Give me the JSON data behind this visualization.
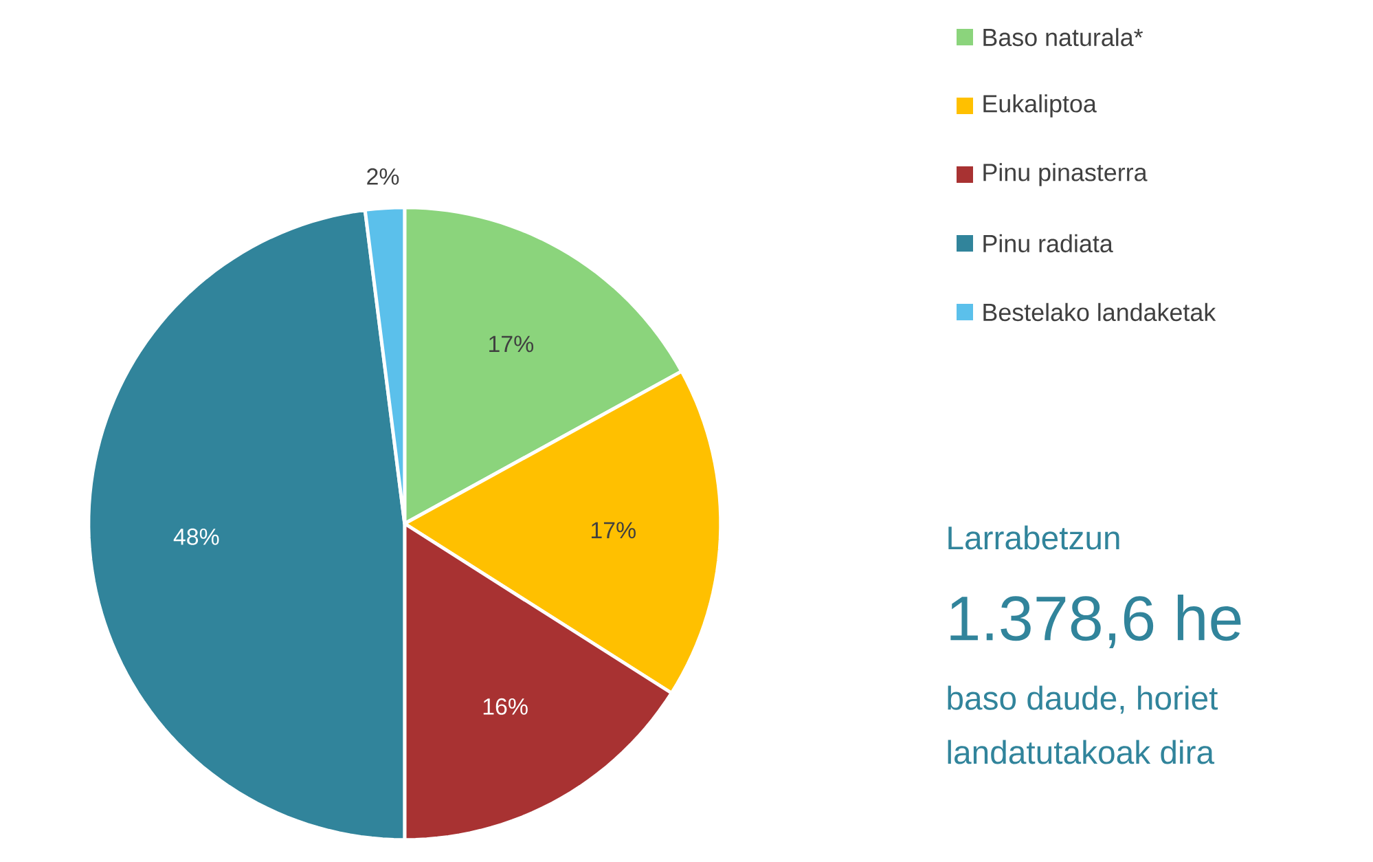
{
  "chart_data": {
    "type": "pie",
    "categories": [
      "Baso naturala*",
      "Eukaliptoa",
      "Pinu pinasterra",
      "Pinu radiata",
      "Bestelako landaketak"
    ],
    "values": [
      17,
      17,
      16,
      48,
      2
    ],
    "colors": [
      "#8bd47c",
      "#ffc000",
      "#a83232",
      "#31849b",
      "#5bc0eb"
    ],
    "value_labels": [
      "17%",
      "17%",
      "16%",
      "48%",
      "2%"
    ],
    "legend": "top right",
    "annotations": [
      "Larrabetzun",
      "1.378,6 he",
      "baso daude, horiet",
      "landatutakoak dira"
    ]
  }
}
